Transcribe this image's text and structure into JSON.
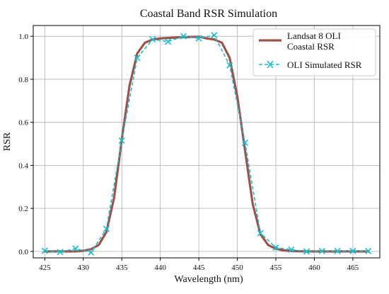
{
  "chart_data": {
    "type": "line",
    "title": "Coastal Band RSR Simulation",
    "xlabel": "Wavelength (nm)",
    "ylabel": "RSR",
    "xlim": [
      423.5,
      468.5
    ],
    "ylim": [
      -0.03,
      1.05
    ],
    "xticks": [
      425,
      430,
      435,
      440,
      445,
      450,
      455,
      460,
      465
    ],
    "yticks": [
      0.0,
      0.2,
      0.4,
      0.6,
      0.8,
      1.0
    ],
    "xtick_labels": [
      "425",
      "430",
      "435",
      "440",
      "445",
      "450",
      "455",
      "460",
      "465"
    ],
    "ytick_labels": [
      "0.0",
      "0.2",
      "0.4",
      "0.6",
      "0.8",
      "1.0"
    ],
    "grid": true,
    "legend_position": "top-right",
    "series": [
      {
        "name_lines": [
          "Landsat 8 OLI",
          "Coastal RSR"
        ],
        "color": "#a0524a",
        "style": "solid",
        "x": [
          425,
          426,
          427,
          428,
          429,
          430,
          431,
          432,
          433,
          434,
          435,
          436,
          437,
          438,
          439,
          440,
          441,
          442,
          443,
          444,
          445,
          446,
          447,
          448,
          449,
          450,
          451,
          452,
          453,
          454,
          455,
          456,
          457,
          458,
          459,
          460,
          461,
          462,
          463,
          464,
          465,
          466,
          467
        ],
        "values": [
          0.0,
          0.0,
          0.0,
          0.0,
          0.0,
          0.003,
          0.01,
          0.03,
          0.09,
          0.25,
          0.52,
          0.77,
          0.92,
          0.97,
          0.985,
          0.99,
          0.992,
          0.994,
          0.996,
          0.997,
          0.998,
          0.99,
          0.985,
          0.97,
          0.9,
          0.72,
          0.47,
          0.22,
          0.08,
          0.03,
          0.012,
          0.005,
          0.002,
          0.001,
          0.0,
          0.0,
          0.0,
          0.0,
          0.0,
          0.0,
          0.0,
          0.0,
          0.0
        ]
      },
      {
        "name": "OLI Simulated RSR",
        "color": "#17becf",
        "style": "dashed",
        "marker": "x",
        "x": [
          425,
          427,
          429,
          431,
          433,
          435,
          437,
          439,
          441,
          443,
          445,
          447,
          449,
          451,
          453,
          455,
          457,
          459,
          461,
          463,
          465,
          467
        ],
        "values": [
          0.003,
          -0.003,
          0.013,
          -0.005,
          0.105,
          0.515,
          0.9,
          0.985,
          0.975,
          1.0,
          0.99,
          1.005,
          0.865,
          0.505,
          0.085,
          0.018,
          0.008,
          0.0,
          0.002,
          0.002,
          0.002,
          0.002
        ]
      }
    ]
  },
  "colors": {
    "grid": "#b0b0b0",
    "axes": "#000000"
  }
}
